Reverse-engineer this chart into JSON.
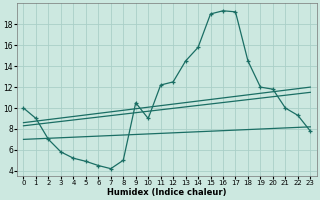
{
  "xlabel": "Humidex (Indice chaleur)",
  "bg_color": "#cce8e0",
  "grid_color": "#aacfc8",
  "line_color": "#1a6e64",
  "xlim": [
    -0.5,
    23.5
  ],
  "ylim": [
    3.5,
    20.0
  ],
  "yticks": [
    4,
    6,
    8,
    10,
    12,
    14,
    16,
    18
  ],
  "xticks": [
    0,
    1,
    2,
    3,
    4,
    5,
    6,
    7,
    8,
    9,
    10,
    11,
    12,
    13,
    14,
    15,
    16,
    17,
    18,
    19,
    20,
    21,
    22,
    23
  ],
  "series1_x": [
    0,
    1,
    2,
    3,
    4,
    5,
    6,
    7,
    8,
    9,
    10,
    11,
    12,
    13,
    14,
    15,
    16,
    17,
    18,
    19,
    20,
    21,
    22,
    23
  ],
  "series1_y": [
    10.0,
    9.0,
    7.0,
    5.8,
    5.2,
    4.9,
    4.5,
    4.2,
    5.0,
    10.5,
    9.0,
    12.2,
    12.5,
    14.5,
    15.8,
    19.0,
    19.3,
    19.2,
    14.5,
    12.0,
    11.8,
    10.0,
    9.3,
    7.8
  ],
  "series2_x": [
    0,
    23
  ],
  "series2_y": [
    8.6,
    12.0
  ],
  "series3_x": [
    0,
    23
  ],
  "series3_y": [
    8.3,
    11.5
  ],
  "series4_x": [
    0,
    23
  ],
  "series4_y": [
    7.0,
    8.2
  ]
}
